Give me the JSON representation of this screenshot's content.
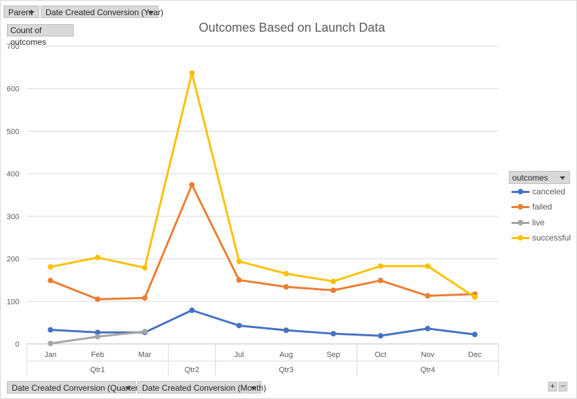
{
  "filters": {
    "top": [
      {
        "label": "Parent"
      },
      {
        "label": "Date Created Conversion (Year)"
      }
    ],
    "bottom": [
      {
        "label": "Date Created Conversion (Quarter)"
      },
      {
        "label": "Date Created Conversion (Month)"
      }
    ],
    "values_badge": "Count of outcomes",
    "legend_field": "outcomes",
    "zoom_in": "+",
    "zoom_out": "−"
  },
  "chart_data": {
    "type": "line",
    "title": "Outcomes Based on Launch Data",
    "ylabel": "Count of outcomes",
    "xlabel": "",
    "ylim": [
      0,
      700
    ],
    "yticks": [
      0,
      100,
      200,
      300,
      400,
      500,
      600,
      700
    ],
    "grid": true,
    "legend_position": "right",
    "x_slots": [
      "Jan",
      "Feb",
      "Mar",
      "",
      "Jul",
      "Aug",
      "Sep",
      "Oct",
      "Nov",
      "Dec"
    ],
    "quarters": [
      {
        "label": "Qtr1",
        "from": 0,
        "to": 2
      },
      {
        "label": "Qtr2",
        "from": 3,
        "to": 3
      },
      {
        "label": "Qtr3",
        "from": 4,
        "to": 6
      },
      {
        "label": "Qtr4",
        "from": 7,
        "to": 9
      }
    ],
    "series": [
      {
        "name": "canceled",
        "color": "#4472c4",
        "values": [
          33,
          27,
          27,
          79,
          43,
          32,
          24,
          19,
          36,
          22
        ]
      },
      {
        "name": "failed",
        "color": "#ed7d31",
        "values": [
          149,
          105,
          108,
          374,
          150,
          134,
          126,
          149,
          113,
          117
        ]
      },
      {
        "name": "live",
        "color": "#a5a5a5",
        "values": [
          1,
          17,
          29,
          null,
          null,
          null,
          null,
          null,
          null,
          null
        ]
      },
      {
        "name": "successful",
        "color": "#ffc000",
        "values": [
          181,
          203,
          179,
          637,
          194,
          165,
          147,
          183,
          183,
          110
        ]
      }
    ]
  }
}
